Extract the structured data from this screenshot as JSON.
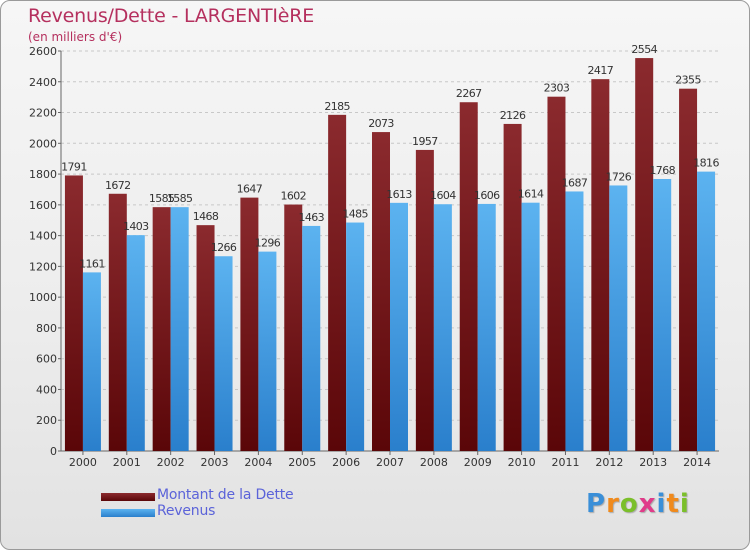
{
  "header": {
    "title": "Revenus/Dette - LARGENTIèRE",
    "subtitle": "(en milliers d'€)"
  },
  "chart_data": {
    "type": "bar",
    "categories": [
      "2000",
      "2001",
      "2002",
      "2003",
      "2004",
      "2005",
      "2006",
      "2007",
      "2008",
      "2009",
      "2010",
      "2011",
      "2012",
      "2013",
      "2014"
    ],
    "series": [
      {
        "name": "Montant de la Dette",
        "color": "#7a1a1e",
        "values": [
          1791,
          1672,
          1585,
          1468,
          1647,
          1602,
          2185,
          2073,
          1957,
          2267,
          2126,
          2303,
          2417,
          2554,
          2355
        ]
      },
      {
        "name": "Revenus",
        "color": "#4aa3e6",
        "values": [
          1161,
          1403,
          1585,
          1266,
          1296,
          1463,
          1485,
          1613,
          1604,
          1606,
          1614,
          1687,
          1726,
          1768,
          1816
        ]
      }
    ],
    "yticks": [
      0,
      200,
      400,
      600,
      800,
      1000,
      1200,
      1400,
      1600,
      1800,
      2000,
      2200,
      2400,
      2600
    ],
    "ylim": [
      0,
      2600
    ],
    "grid": true,
    "legend": "bottom-left"
  },
  "logo": {
    "letters": [
      "P",
      "r",
      "o",
      "x",
      "i",
      "t",
      "i"
    ],
    "colors": [
      "#3a8fd8",
      "#f08a1c",
      "#7bbf2a",
      "#e03c8a",
      "#3a8fd8",
      "#f08a1c",
      "#7bbf2a"
    ]
  }
}
